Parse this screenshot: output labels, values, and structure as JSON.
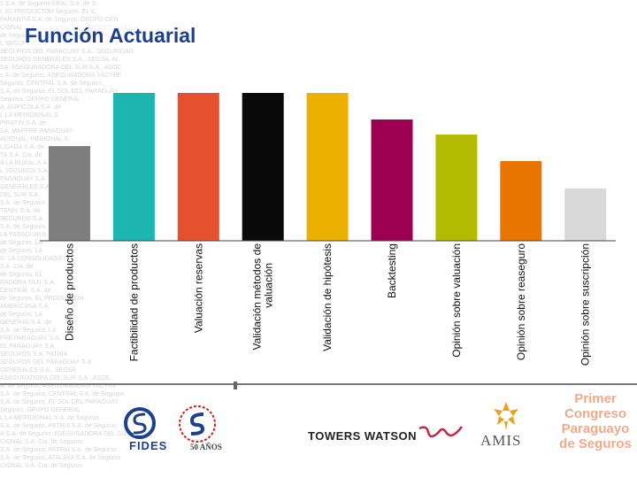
{
  "title": "Función Actuarial",
  "background_text": [
    "1 S.A. de Seguros    ERAL S.A. de S",
    "L EL PRODUCTOR       Seguros, EL C",
    "PARANTIA S.A. de Seguros, GRUPO GEN",
    "CIONAL S.A. de Seguros, LA CONSOLIDADA S.A.",
    "de Seguros, LA RURAL S.A. de Seguros",
    "L SEGUROS S.A. PATRIA S.A. de Seguros",
    "SEGUROS DEL PARAGUAY S.A., SEGURIDAD",
    "SEGUROS GENERALES S.A., SEGSA, AL",
    "SA. ASEGURADORA DEL SUR S.A., ASOC",
    "s.A. de Seguros, ASEGURADORA YACYRE",
    "Seguros, CENTRAL S.A. de Seguros",
    "S.A. de Seguros, EL SOL DEL PARAGUAY",
    "Seguros, GRUPO GENERAL",
    "A. AGRICOLA S.A. de",
    "L LA MERIDIONAL S",
    "PIRATIN S.A. de",
    "SA, MAPFRE PARAGUAY",
    "ACIONAL, REGIONAL S",
    "LIDADA S.A. de",
    "TA S.A. Cia. de",
    "A LA RURAL S.A.",
    "L SEGUROS S.A.",
    "PARAGUAY S.A.",
    "GENERALES S.A.",
    "DEL SUR S.A.",
    "S.A. de Seguros",
    "TENIS S.A. de",
    "SEGUROS S.A.",
    "S.A. de Seguros",
    "LA PARAGUAYA",
    "de Seguros, LA",
    "de Seguros, LA",
    "R. LA CONSOLIDADA",
    "S.A. Cia. de",
    "de Seguros, EL",
    "RADORA TAJY S.A.",
    "CENTRAL S.A. de",
    "de Seguros, EL PRODUCTOR",
    "AMERICANA S.A.",
    "de Seguros, LA",
    "GENERAL S.A. de",
    "S.A. de Seguros, LA",
    "FRE PARAGUAY S.A.",
    "EL PARAGUAY S.A.",
    "SEGUROS S.A. PATRIA",
    "SEGUROS DEL PARAGUAY S.A.",
    "GENERALES S.A., SEGSA",
    "ASEGURADORA DEL SUR S.A., ASOC",
    "A. de Seguros, ASEGURADORA YACYRE",
    "S.A. de Seguros, CENTRAL S.A. de Seguros",
    "S.A. de Seguros, EL SOL DEL PARAGUAY",
    "Seguros, GRUPO GENERAL",
    "L LA MERIDIONAL S.A. de Seguros",
    "S.A. de Seguros, PATRIA S.A. de Seguros",
    "A.S.A. de Seguros, ASEGURADORA DEL SUR",
    "CIONAL S.A. Cia. de Seguros",
    "S.A. de Seguros, PATRIA S.A. de Seguros",
    "S.A. de Seguros, ATALAYA S.A. de Seguros",
    "CIONAL S.A. Cia. de Seguros"
  ],
  "chart_data": {
    "type": "bar",
    "categories": [
      "Diseño de productos",
      "Factibilidad de productos",
      "Valuación reservas",
      "Validación métodos de valuación",
      "Validación de hipótesis",
      "Backtesting",
      "Opinión sobre valuación",
      "Opinión sobre reaseguro",
      "Opinión sobre suscripción"
    ],
    "values": [
      107,
      167,
      167,
      167,
      167,
      137,
      120,
      90,
      59
    ],
    "ylim": [
      0,
      175
    ],
    "colors": [
      "#7f7f7f",
      "#1db5b0",
      "#e5512e",
      "#0a0a0a",
      "#ecb000",
      "#9b0051",
      "#b1bb00",
      "#e87500",
      "#d9d9d9"
    ],
    "grid": false,
    "legend": "none"
  },
  "logos": {
    "fides": "FIDES",
    "anos": "50 AÑOS",
    "towers_watson": "TOWERS WATSON",
    "amis": "AMIS",
    "congreso": [
      "Primer",
      "Congreso",
      "Paraguayo",
      "de Seguros"
    ]
  }
}
